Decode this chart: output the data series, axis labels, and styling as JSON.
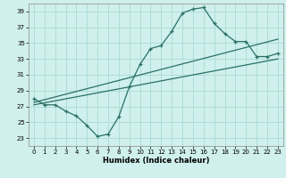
{
  "xlabel": "Humidex (Indice chaleur)",
  "bg_color": "#cff0ec",
  "line_color": "#2a7068",
  "grid_color": "#aeddd8",
  "xlim": [
    -0.5,
    23.5
  ],
  "ylim": [
    22.0,
    40.0
  ],
  "yticks": [
    23,
    25,
    27,
    29,
    31,
    33,
    35,
    37,
    39
  ],
  "xticks": [
    0,
    1,
    2,
    3,
    4,
    5,
    6,
    7,
    8,
    9,
    10,
    11,
    12,
    13,
    14,
    15,
    16,
    17,
    18,
    19,
    20,
    21,
    22,
    23
  ],
  "curve1_x": [
    0,
    1,
    2,
    3,
    4,
    5,
    6,
    7,
    8,
    9,
    10,
    11,
    12,
    13,
    14,
    15,
    16,
    17,
    18,
    19,
    20,
    21,
    22,
    23
  ],
  "curve1_y": [
    28.0,
    27.2,
    27.2,
    26.4,
    25.8,
    24.6,
    23.2,
    23.5,
    25.7,
    29.5,
    32.3,
    34.3,
    34.7,
    36.5,
    38.8,
    39.3,
    39.5,
    37.5,
    36.2,
    35.2,
    35.2,
    33.3,
    33.3,
    33.7
  ],
  "curve2_x": [
    0,
    23
  ],
  "curve2_y": [
    27.5,
    35.5
  ],
  "curve3_x": [
    0,
    23
  ],
  "curve3_y": [
    27.2,
    33.0
  ],
  "marker": "+"
}
